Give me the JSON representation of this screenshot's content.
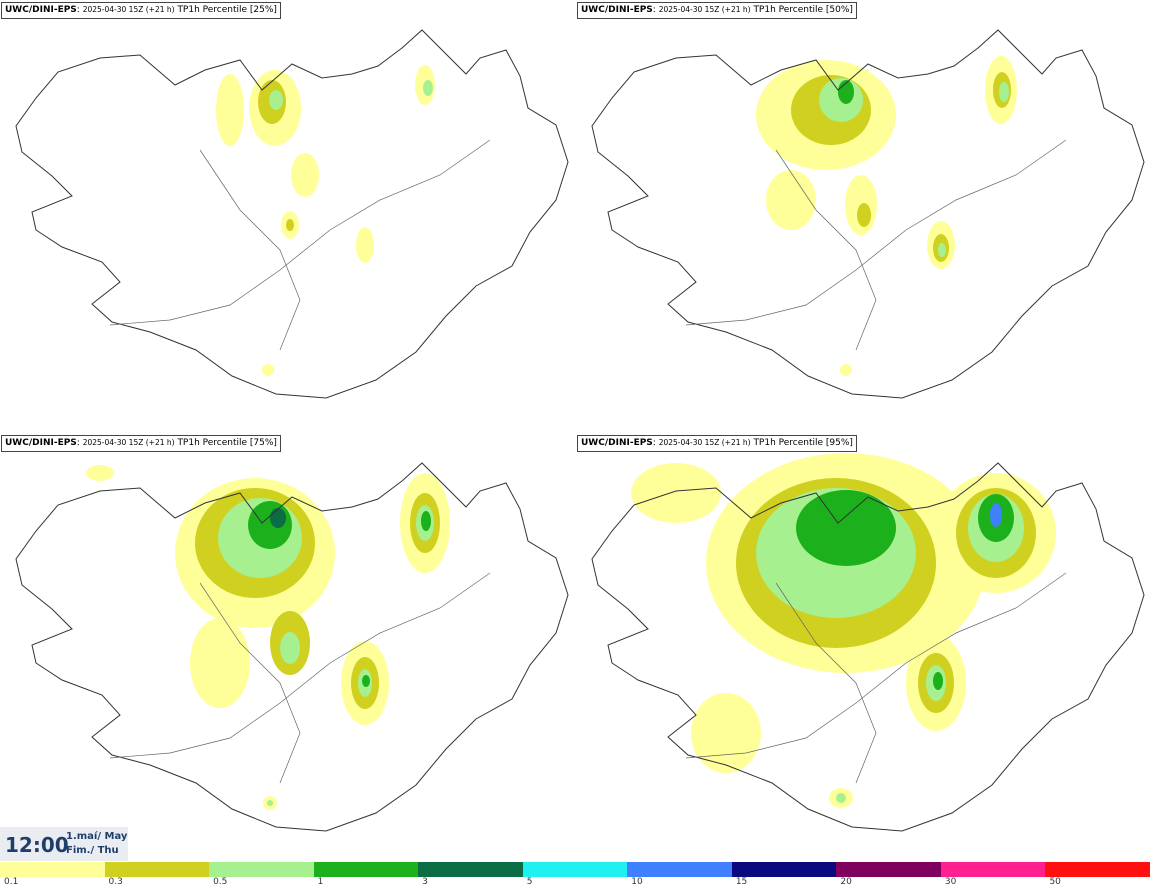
{
  "panels": [
    {
      "model": "UWC/DINI-EPS",
      "run": "2025-04-30 15Z (+21 h)",
      "field": "TP1h Percentile [25%]",
      "percentile": 25
    },
    {
      "model": "UWC/DINI-EPS",
      "run": "2025-04-30 15Z (+21 h)",
      "field": "TP1h Percentile [50%]",
      "percentile": 50
    },
    {
      "model": "UWC/DINI-EPS",
      "run": "2025-04-30 15Z (+21 h)",
      "field": "TP1h Percentile [75%]",
      "percentile": 75
    },
    {
      "model": "UWC/DINI-EPS",
      "run": "2025-04-30 15Z (+21 h)",
      "field": "TP1h Percentile [95%]",
      "percentile": 95
    }
  ],
  "valid_time": {
    "hour": "12:00",
    "line1": "1.maí/ May",
    "line2": "Fim./ Thu"
  },
  "legend": {
    "ticks": [
      "0.1",
      "0.3",
      "0.5",
      "1",
      "3",
      "5",
      "10",
      "15",
      "20",
      "30",
      "50"
    ],
    "colors": [
      "#ffff99",
      "#d0d020",
      "#a6f090",
      "#1cb01c",
      "#0c6c44",
      "#20f0f0",
      "#3f80ff",
      "#0a0a80",
      "#800060",
      "#ff2090",
      "#ff1010"
    ]
  }
}
